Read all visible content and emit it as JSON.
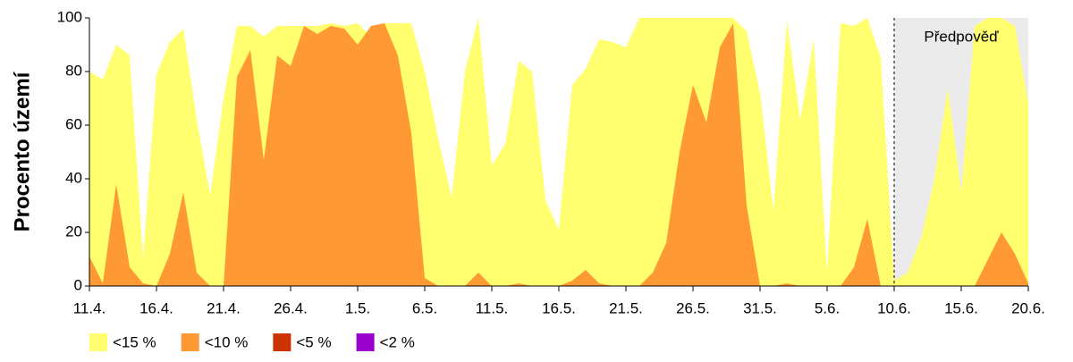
{
  "chart_data": {
    "type": "area",
    "y_label": "Procento území",
    "categories": [
      "11.4.",
      null,
      null,
      null,
      null,
      "16.4.",
      null,
      null,
      null,
      null,
      "21.4.",
      null,
      null,
      null,
      null,
      "26.4.",
      null,
      null,
      null,
      null,
      "1.5.",
      null,
      null,
      null,
      null,
      "6.5.",
      null,
      null,
      null,
      null,
      "11.5.",
      null,
      null,
      null,
      null,
      "16.5.",
      null,
      null,
      null,
      null,
      "21.5.",
      null,
      null,
      null,
      null,
      "26.5.",
      null,
      null,
      null,
      null,
      "31.5.",
      null,
      null,
      null,
      null,
      "5.6.",
      null,
      null,
      null,
      null,
      "10.6.",
      null,
      null,
      null,
      null,
      "15.6.",
      null,
      null,
      null,
      null,
      "20.6."
    ],
    "series": [
      {
        "name": "<15 %",
        "color": "#ffff70",
        "values": [
          80,
          77,
          90,
          86,
          10,
          79,
          91,
          96,
          62,
          34,
          70,
          97,
          97,
          93,
          97,
          97,
          97,
          97,
          98,
          97,
          98,
          93,
          98,
          98,
          98,
          80,
          55,
          33,
          80,
          100,
          45,
          53,
          84,
          80,
          32,
          21,
          75,
          81,
          92,
          91,
          89,
          100,
          100,
          100,
          100,
          100,
          100,
          100,
          100,
          95,
          72,
          28,
          99,
          62,
          92,
          5,
          98,
          97,
          100,
          85,
          2,
          5,
          18,
          40,
          74,
          35,
          97,
          100,
          100,
          97,
          68
        ]
      },
      {
        "name": "<10 %",
        "color": "#ff9933",
        "values": [
          11,
          1,
          38,
          7,
          1,
          0,
          12,
          35,
          5,
          0,
          0,
          78,
          88,
          47,
          86,
          82,
          97,
          94,
          97,
          96,
          90,
          97,
          98,
          86,
          57,
          3,
          0,
          0,
          0,
          5,
          0,
          0,
          1,
          0,
          0,
          0,
          2,
          6,
          1,
          0,
          0,
          0,
          5,
          16,
          50,
          75,
          61,
          89,
          98,
          30,
          0,
          0,
          1,
          0,
          0,
          0,
          0,
          7,
          25,
          0,
          0,
          0,
          0,
          0,
          0,
          0,
          0,
          10,
          20,
          12,
          1
        ]
      },
      {
        "name": "<5 %",
        "color": "#cc3300",
        "values": [
          0,
          0,
          0,
          0,
          0,
          0,
          0,
          0,
          0,
          0,
          0,
          0,
          0,
          0,
          0,
          0,
          0,
          0,
          0,
          0,
          0,
          0,
          0,
          0,
          0,
          0,
          0,
          0,
          0,
          0,
          0,
          0,
          0,
          0,
          0,
          0,
          0,
          0,
          0,
          0,
          0,
          0,
          0,
          0,
          0,
          0,
          0,
          0,
          0,
          0,
          0,
          0,
          0,
          0,
          0,
          0,
          0,
          0,
          0,
          0,
          0,
          0,
          0,
          0,
          0,
          0,
          0,
          0,
          0,
          0,
          0
        ]
      },
      {
        "name": "<2 %",
        "color": "#9900cc",
        "values": [
          0,
          0,
          0,
          0,
          0,
          0,
          0,
          0,
          0,
          0,
          0,
          0,
          0,
          0,
          0,
          0,
          0,
          0,
          0,
          0,
          0,
          0,
          0,
          0,
          0,
          0,
          0,
          0,
          0,
          0,
          0,
          0,
          0,
          0,
          0,
          0,
          0,
          0,
          0,
          0,
          0,
          0,
          0,
          0,
          0,
          0,
          0,
          0,
          0,
          0,
          0,
          0,
          0,
          0,
          0,
          0,
          0,
          0,
          0,
          0,
          0,
          0,
          0,
          0,
          0,
          0,
          0,
          0,
          0,
          0,
          0
        ]
      }
    ],
    "ylim": [
      0,
      100
    ],
    "yticks": [
      0,
      20,
      40,
      60,
      80,
      100
    ],
    "forecast": {
      "label": "Předpověď",
      "start": "10.6.",
      "color": "#ebebeb"
    },
    "legend": "bottom"
  }
}
